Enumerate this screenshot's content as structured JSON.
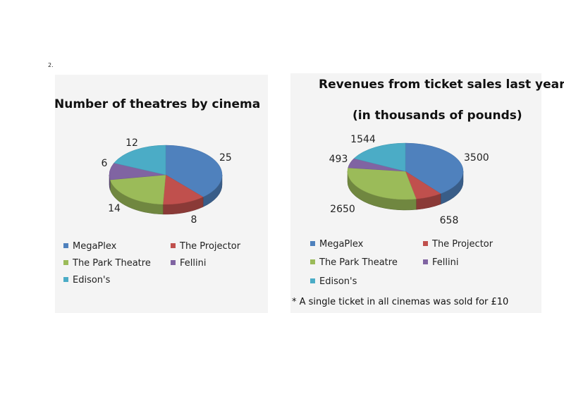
{
  "page": {
    "number": "2."
  },
  "colors": {
    "MegaPlex": "#4f81bd",
    "The Projector": "#c0504d",
    "The Park Theatre": "#9bbb59",
    "Fellini": "#8064a2",
    "Edison's": "#4bacc6"
  },
  "legend_labels": {
    "megaplex": "MegaPlex",
    "projector": "The Projector",
    "park": "The Park Theatre",
    "fellini": "Fellini",
    "edisons": "Edison's"
  },
  "footnote": "* A single ticket in all cinemas was sold for £10",
  "chart_data": [
    {
      "type": "pie",
      "title": "Number of theatres by cinema",
      "categories": [
        "MegaPlex",
        "The Projector",
        "The Park Theatre",
        "Fellini",
        "Edison's"
      ],
      "values": [
        25,
        8,
        14,
        6,
        12
      ],
      "data_labels": [
        "25",
        "8",
        "14",
        "6",
        "12"
      ],
      "style": "3d"
    },
    {
      "type": "pie",
      "title": "Revenues from ticket sales last year",
      "subtitle": "(in thousands of pounds)",
      "categories": [
        "MegaPlex",
        "The Projector",
        "The Park Theatre",
        "Fellini",
        "Edison's"
      ],
      "values": [
        3500,
        658,
        2650,
        493,
        1544
      ],
      "data_labels": [
        "3500",
        "658",
        "2650",
        "493",
        "1544"
      ],
      "style": "3d"
    }
  ]
}
